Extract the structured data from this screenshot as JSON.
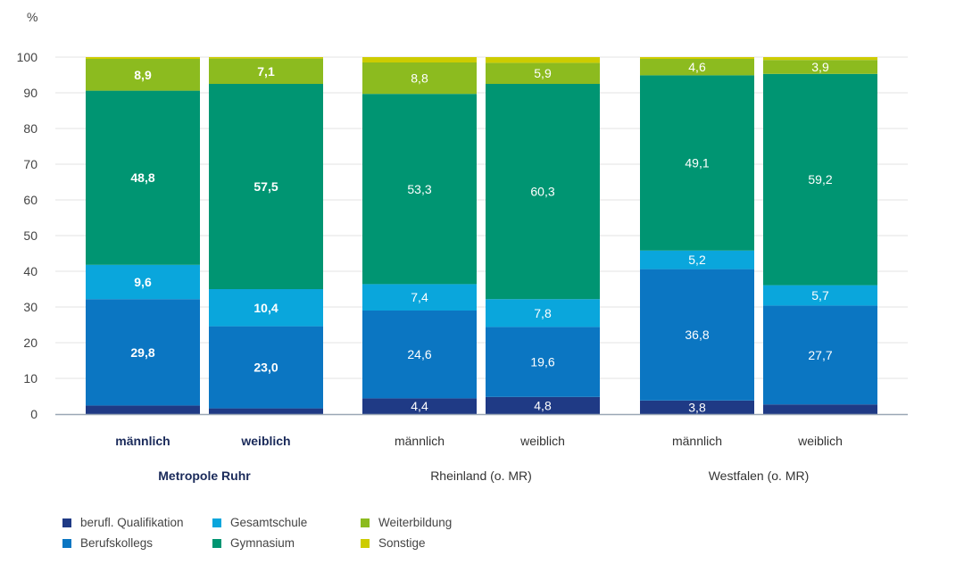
{
  "chart_data": {
    "type": "bar",
    "stacked": true,
    "unit_label": "%",
    "ylim": [
      0,
      100
    ],
    "yticks": [
      0,
      10,
      20,
      30,
      40,
      50,
      60,
      70,
      80,
      90,
      100
    ],
    "grid": true,
    "legend_position": "bottom-left",
    "series_order": [
      "berufl. Qualifikation",
      "Berufskollegs",
      "Gesamtschule",
      "Gymnasium",
      "Weiterbildung",
      "Sonstige"
    ],
    "colors": {
      "berufl. Qualifikation": "#1f3a85",
      "Berufskollegs": "#0b76c2",
      "Gesamtschule": "#0aa6dc",
      "Gymnasium": "#009572",
      "Weiterbildung": "#8cbb1f",
      "Sonstige": "#cdcc00"
    },
    "groups": [
      {
        "name": "Metropole Ruhr",
        "bold": true,
        "bars": [
          {
            "label": "männlich",
            "segments": [
              {
                "series": "berufl. Qualifikation",
                "value": 2.4,
                "label": ""
              },
              {
                "series": "Berufskollegs",
                "value": 29.8,
                "label": "29,8"
              },
              {
                "series": "Gesamtschule",
                "value": 9.6,
                "label": "9,6"
              },
              {
                "series": "Gymnasium",
                "value": 48.8,
                "label": "48,8"
              },
              {
                "series": "Weiterbildung",
                "value": 8.9,
                "label": "8,9"
              },
              {
                "series": "Sonstige",
                "value": 0.5,
                "label": ""
              }
            ]
          },
          {
            "label": "weiblich",
            "segments": [
              {
                "series": "berufl. Qualifikation",
                "value": 1.6,
                "label": ""
              },
              {
                "series": "Berufskollegs",
                "value": 23.0,
                "label": "23,0"
              },
              {
                "series": "Gesamtschule",
                "value": 10.4,
                "label": "10,4"
              },
              {
                "series": "Gymnasium",
                "value": 57.5,
                "label": "57,5"
              },
              {
                "series": "Weiterbildung",
                "value": 7.1,
                "label": "7,1"
              },
              {
                "series": "Sonstige",
                "value": 0.4,
                "label": ""
              }
            ]
          }
        ]
      },
      {
        "name": "Rheinland (o. MR)",
        "bold": false,
        "bars": [
          {
            "label": "männlich",
            "segments": [
              {
                "series": "berufl. Qualifikation",
                "value": 4.4,
                "label": "4,4"
              },
              {
                "series": "Berufskollegs",
                "value": 24.6,
                "label": "24,6"
              },
              {
                "series": "Gesamtschule",
                "value": 7.4,
                "label": "7,4"
              },
              {
                "series": "Gymnasium",
                "value": 53.3,
                "label": "53,3"
              },
              {
                "series": "Weiterbildung",
                "value": 8.8,
                "label": "8,8"
              },
              {
                "series": "Sonstige",
                "value": 1.5,
                "label": ""
              }
            ]
          },
          {
            "label": "weiblich",
            "segments": [
              {
                "series": "berufl. Qualifikation",
                "value": 4.8,
                "label": "4,8"
              },
              {
                "series": "Berufskollegs",
                "value": 19.6,
                "label": "19,6"
              },
              {
                "series": "Gesamtschule",
                "value": 7.8,
                "label": "7,8"
              },
              {
                "series": "Gymnasium",
                "value": 60.3,
                "label": "60,3"
              },
              {
                "series": "Weiterbildung",
                "value": 5.9,
                "label": "5,9"
              },
              {
                "series": "Sonstige",
                "value": 1.6,
                "label": ""
              }
            ]
          }
        ]
      },
      {
        "name": "Westfalen (o. MR)",
        "bold": false,
        "bars": [
          {
            "label": "männlich",
            "segments": [
              {
                "series": "berufl. Qualifikation",
                "value": 3.8,
                "label": "3,8"
              },
              {
                "series": "Berufskollegs",
                "value": 36.8,
                "label": "36,8"
              },
              {
                "series": "Gesamtschule",
                "value": 5.2,
                "label": "5,2"
              },
              {
                "series": "Gymnasium",
                "value": 49.1,
                "label": "49,1"
              },
              {
                "series": "Weiterbildung",
                "value": 4.6,
                "label": "4,6"
              },
              {
                "series": "Sonstige",
                "value": 0.5,
                "label": ""
              }
            ]
          },
          {
            "label": "weiblich",
            "segments": [
              {
                "series": "berufl. Qualifikation",
                "value": 2.7,
                "label": ""
              },
              {
                "series": "Berufskollegs",
                "value": 27.7,
                "label": "27,7"
              },
              {
                "series": "Gesamtschule",
                "value": 5.7,
                "label": "5,7"
              },
              {
                "series": "Gymnasium",
                "value": 59.2,
                "label": "59,2"
              },
              {
                "series": "Weiterbildung",
                "value": 3.9,
                "label": "3,9"
              },
              {
                "series": "Sonstige",
                "value": 0.8,
                "label": ""
              }
            ]
          }
        ]
      }
    ]
  }
}
